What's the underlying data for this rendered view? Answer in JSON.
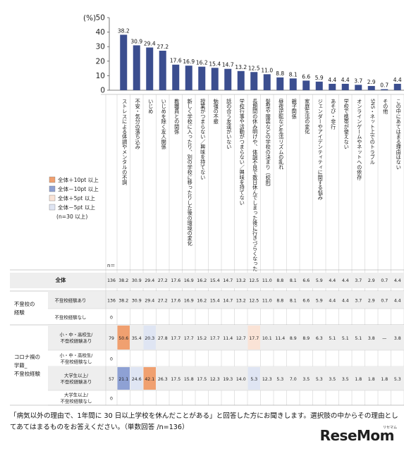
{
  "chart_data": {
    "type": "bar",
    "unit_label": "(%)",
    "ylim": [
      0,
      50
    ],
    "yticks": [
      0,
      10,
      20,
      30,
      40,
      50
    ],
    "bar_color": "#3b4e8f",
    "categories": [
      "ストレスによる体調やメンタルの不調",
      "不安・気分の落ち込み",
      "いじめ",
      "いじめを除く友人関係",
      "教職員との関係",
      "新しく学校に入ったり、別の学校に移ったりした後の環境の変化",
      "授業がつまらない／興味を持てない",
      "勉強の不振",
      "話の合う友達がいない",
      "学校行事や活動がつまらない／興味を持てない",
      "長期間の休み明けや、体調不良で数日休んでしまった後に行きづらくなった",
      "髪型や服装などの学校の決まり（校則）",
      "昼夜逆転など生活リズムの乱れ",
      "親子関係",
      "家庭生活の変化",
      "ジェンダーやアイデンティティに関する悩み",
      "あそび・非行",
      "学校で携帯が使えない",
      "オンラインゲームやネットへの依存",
      "SNS・ネット上でのトラブル",
      "その他",
      "この中にあてはまる理由はない"
    ],
    "values": [
      38.2,
      30.9,
      29.4,
      27.2,
      17.6,
      16.9,
      16.2,
      15.4,
      14.7,
      13.2,
      12.5,
      11.0,
      8.8,
      8.1,
      6.6,
      5.9,
      4.4,
      4.4,
      3.7,
      2.9,
      0.7,
      4.4
    ],
    "legend": [
      {
        "label": "全体＋10pt 以上",
        "color": "#f0a070"
      },
      {
        "label": "全体－10pt 以上",
        "color": "#8ea1d4"
      },
      {
        "label": "全体＋5pt 以上",
        "color": "#fae3d6"
      },
      {
        "label": "全体－5pt 以上",
        "color": "#dfe5f3"
      },
      {
        "label": "(n=30 以上)",
        "color": ""
      }
    ],
    "n_header": "n＝",
    "colors": {
      "up10": "#f0a070",
      "down10": "#8ea1d4",
      "up5": "#fae3d6",
      "down5": "#dfe5f3",
      "zebra": "#eeeeee"
    },
    "table": {
      "total_label": "全体",
      "groups": [
        {
          "group_label": "不登校の経験",
          "rows": [
            {
              "label": "不登校経験あり",
              "n": "136",
              "values": [
                "38.2",
                "30.9",
                "29.4",
                "27.2",
                "17.6",
                "16.9",
                "16.2",
                "15.4",
                "14.7",
                "13.2",
                "12.5",
                "11.0",
                "8.8",
                "8.1",
                "6.6",
                "5.9",
                "4.4",
                "4.4",
                "3.7",
                "2.9",
                "0.7",
                "4.4"
              ]
            },
            {
              "label": "不登校経験なし",
              "n": "0",
              "values": []
            }
          ]
        },
        {
          "group_label": "コロナ禍の学籍_不登校経験",
          "rows": [
            {
              "label": "小・中・高校生/不登校経験あり",
              "n": "79",
              "values": [
                "50.6",
                "35.4",
                "20.3",
                "27.8",
                "17.7",
                "17.7",
                "15.2",
                "17.7",
                "11.4",
                "12.7",
                "17.7",
                "10.1",
                "11.4",
                "8.9",
                "8.9",
                "6.3",
                "5.1",
                "5.1",
                "5.1",
                "3.8",
                "—",
                "3.8"
              ]
            },
            {
              "label": "小・中・高校生/不登校経験なし",
              "n": "0",
              "values": []
            },
            {
              "label": "大学生以上/不登校経験あり",
              "n": "57",
              "values": [
                "21.1",
                "24.6",
                "42.1",
                "26.3",
                "17.5",
                "15.8",
                "17.5",
                "12.3",
                "19.3",
                "14.0",
                "5.3",
                "12.3",
                "5.3",
                "7.0",
                "3.5",
                "5.3",
                "3.5",
                "3.5",
                "1.8",
                "1.8",
                "1.8",
                "5.3"
              ]
            },
            {
              "label": "大学生以上/不登校経験なし",
              "n": "0",
              "values": []
            }
          ]
        }
      ],
      "total_row": {
        "n": "136",
        "values": [
          "38.2",
          "30.9",
          "29.4",
          "27.2",
          "17.6",
          "16.9",
          "16.2",
          "15.4",
          "14.7",
          "13.2",
          "12.5",
          "11.0",
          "8.8",
          "8.1",
          "6.6",
          "5.9",
          "4.4",
          "4.4",
          "3.7",
          "2.9",
          "0.7",
          "4.4"
        ]
      },
      "highlights": [
        {
          "row": 2,
          "col": 0,
          "level": "up10"
        },
        {
          "row": 2,
          "col": 2,
          "level": "down5"
        },
        {
          "row": 2,
          "col": 10,
          "level": "up5"
        },
        {
          "row": 4,
          "col": 0,
          "level": "down10"
        },
        {
          "row": 4,
          "col": 1,
          "level": "down5"
        },
        {
          "row": 4,
          "col": 2,
          "level": "up10"
        },
        {
          "row": 4,
          "col": 10,
          "level": "down5"
        }
      ]
    }
  },
  "note": "「病気以外の理由で、1年間に 30 日以上学校を休んだことがある」と回答した方にお聞きします。選択肢の中からその理由としてあてはまるものをお答えください。（単数回答 /n=136）",
  "logo": {
    "text": "ReseMom",
    "kana": "リセマム"
  }
}
